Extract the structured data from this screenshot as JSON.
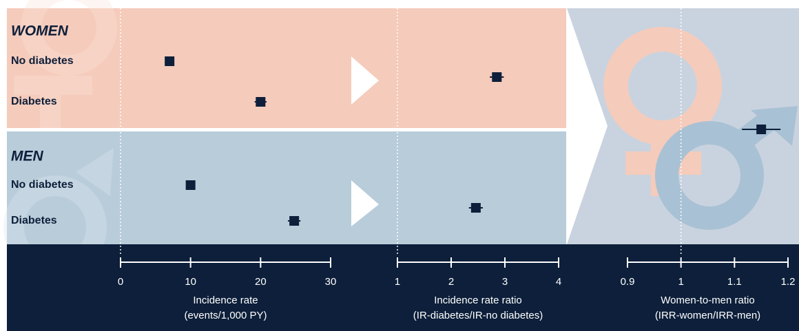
{
  "chart_data": [
    {
      "type": "forest",
      "xlabel": [
        "Incidence rate",
        "(events/1,000 PY)"
      ],
      "xlim": [
        0,
        30
      ],
      "xticks": [
        0,
        10,
        20,
        30
      ],
      "reference": 0,
      "categories": [
        "No diabetes",
        "Diabetes"
      ],
      "series": [
        {
          "name": "WOMEN",
          "color": "#f5cbbb",
          "values": [
            7,
            20
          ],
          "errors": [
            0.3,
            0.85
          ]
        },
        {
          "name": "MEN",
          "color": "#b8ccda",
          "values": [
            10,
            24.8
          ],
          "errors": [
            0.3,
            0.9
          ]
        }
      ]
    },
    {
      "type": "forest",
      "xlabel": [
        "Incidence rate ratio",
        "(IR-diabetes/IR-no diabetes)"
      ],
      "xlim": [
        1,
        4
      ],
      "xticks": [
        1,
        2,
        3,
        4
      ],
      "reference": 1,
      "series": [
        {
          "values": [
            2.85
          ],
          "errors": [
            0.13
          ]
        },
        {
          "values": [
            2.46
          ],
          "errors": [
            0.13
          ]
        }
      ]
    },
    {
      "type": "forest",
      "xlabel": [
        "Women-to-men ratio",
        "(IRR-women/IRR-men)"
      ],
      "xlim": [
        0.9,
        1.2
      ],
      "xticks": [
        0.9,
        1,
        1.1,
        1.2
      ],
      "reference": 1,
      "series": [
        {
          "values": [
            1.15
          ],
          "errors": [
            0.036
          ]
        }
      ]
    }
  ]
}
